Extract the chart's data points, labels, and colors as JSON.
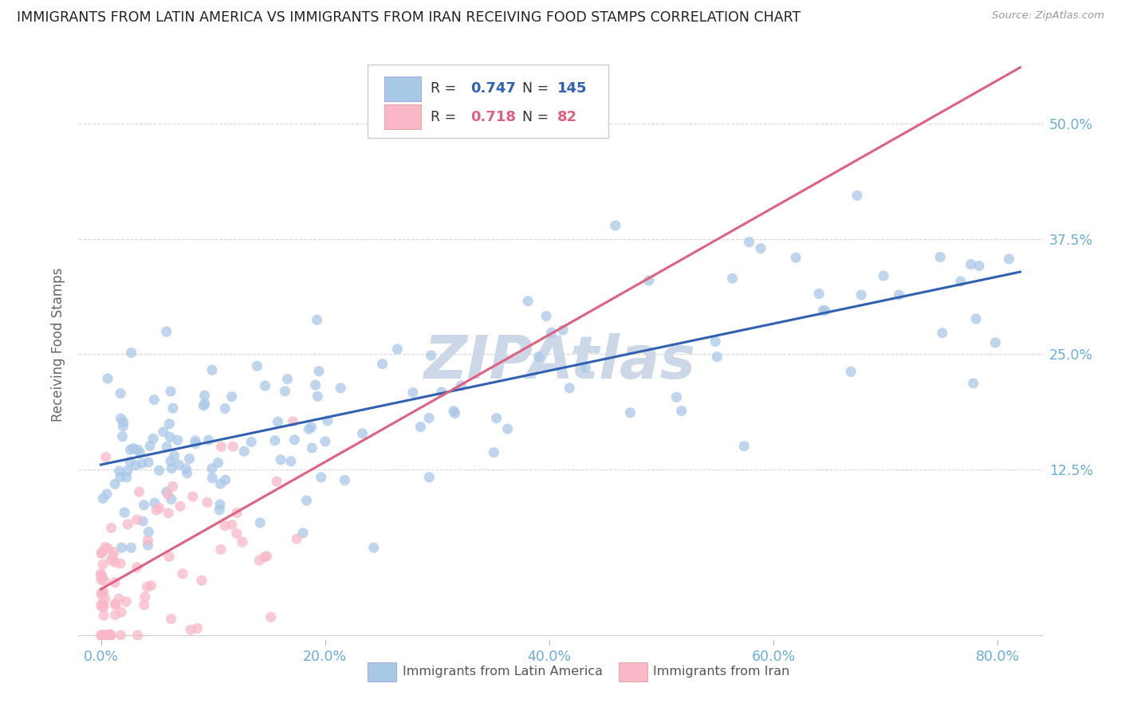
{
  "title": "IMMIGRANTS FROM LATIN AMERICA VS IMMIGRANTS FROM IRAN RECEIVING FOOD STAMPS CORRELATION CHART",
  "source": "Source: ZipAtlas.com",
  "xlabel_ticks": [
    "0.0%",
    "20.0%",
    "40.0%",
    "60.0%",
    "80.0%"
  ],
  "ylabel_ticks": [
    "12.5%",
    "25.0%",
    "37.5%",
    "50.0%"
  ],
  "ylabel_label": "Receiving Food Stamps",
  "xlim": [
    -0.02,
    0.84
  ],
  "ylim": [
    -0.06,
    0.58
  ],
  "blue_R": 0.747,
  "blue_N": 145,
  "pink_R": 0.718,
  "pink_N": 82,
  "blue_color": "#a8c8e8",
  "pink_color": "#f8b8c8",
  "blue_line_color": "#3060b0",
  "pink_line_color": "#e06080",
  "grid_color": "#d8d8d8",
  "title_color": "#222222",
  "axis_tick_color": "#6baed6",
  "background_color": "#ffffff",
  "watermark_text": "ZIPAtlas",
  "watermark_color": "#ccd8e8",
  "legend_label_blue": "Immigrants from Latin America",
  "legend_label_pink": "Immigrants from Iran",
  "blue_intercept": 0.13,
  "blue_slope": 0.255,
  "pink_intercept": -0.005,
  "pink_slope": 0.69
}
